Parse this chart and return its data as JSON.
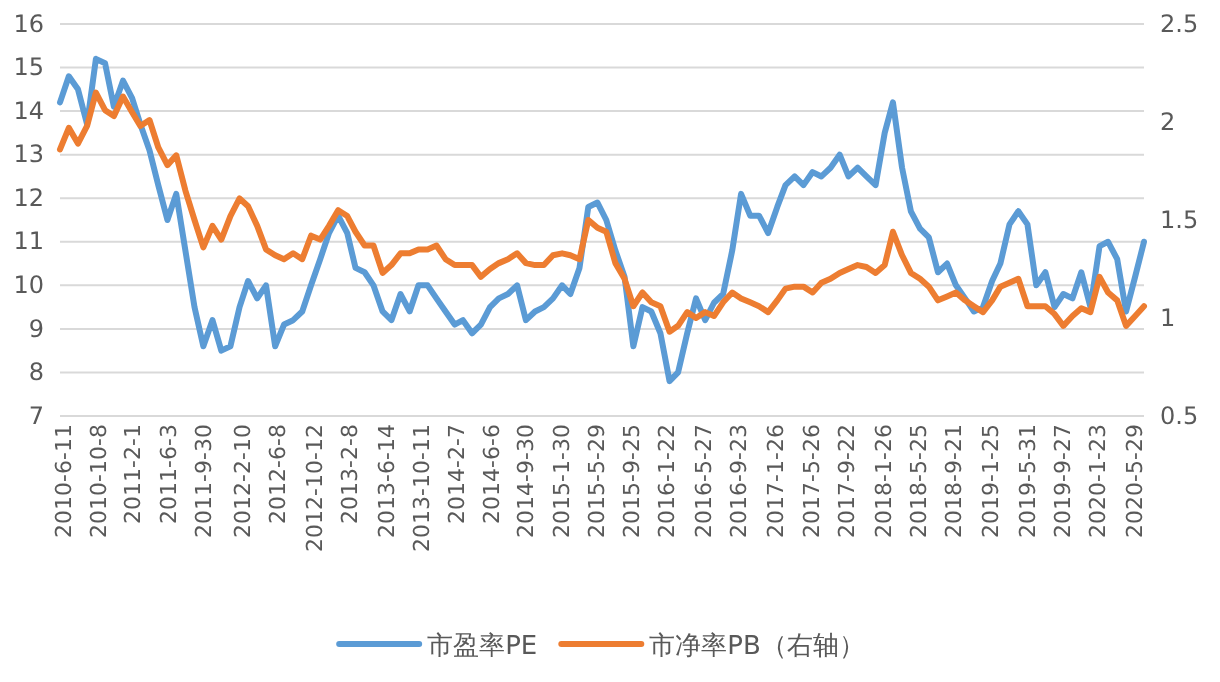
{
  "chart_data": {
    "type": "line",
    "x": [
      "2010-06",
      "2010-07",
      "2010-08",
      "2010-09",
      "2010-10",
      "2010-11",
      "2010-12",
      "2011-01",
      "2011-02",
      "2011-03",
      "2011-04",
      "2011-05",
      "2011-06",
      "2011-07",
      "2011-08",
      "2011-09",
      "2011-10",
      "2011-11",
      "2011-12",
      "2012-01",
      "2012-02",
      "2012-03",
      "2012-04",
      "2012-05",
      "2012-06",
      "2012-07",
      "2012-08",
      "2012-09",
      "2012-10",
      "2012-11",
      "2012-12",
      "2013-01",
      "2013-02",
      "2013-03",
      "2013-04",
      "2013-05",
      "2013-06",
      "2013-07",
      "2013-08",
      "2013-09",
      "2013-10",
      "2013-11",
      "2013-12",
      "2014-01",
      "2014-02",
      "2014-03",
      "2014-04",
      "2014-05",
      "2014-06",
      "2014-07",
      "2014-08",
      "2014-09",
      "2014-10",
      "2014-11",
      "2014-12",
      "2015-01",
      "2015-02",
      "2015-03",
      "2015-04",
      "2015-05",
      "2015-06",
      "2015-07",
      "2015-08",
      "2015-09",
      "2015-10",
      "2015-11",
      "2015-12",
      "2016-01",
      "2016-02",
      "2016-03",
      "2016-04",
      "2016-05",
      "2016-06",
      "2016-07",
      "2016-08",
      "2016-09",
      "2016-10",
      "2016-11",
      "2016-12",
      "2017-01",
      "2017-02",
      "2017-03",
      "2017-04",
      "2017-05",
      "2017-06",
      "2017-07",
      "2017-08",
      "2017-09",
      "2017-10",
      "2017-11",
      "2017-12",
      "2018-01",
      "2018-02",
      "2018-03",
      "2018-04",
      "2018-05",
      "2018-06",
      "2018-07",
      "2018-08",
      "2018-09",
      "2018-10",
      "2018-11",
      "2018-12",
      "2019-01",
      "2019-02",
      "2019-03",
      "2019-04",
      "2019-05",
      "2019-06",
      "2019-07",
      "2019-08",
      "2019-09",
      "2019-10",
      "2019-11",
      "2019-12",
      "2020-01",
      "2020-02",
      "2020-03",
      "2020-04",
      "2020-05",
      "2020-06",
      "2020-07"
    ],
    "series": [
      {
        "name": "市盈率PE",
        "color": "#5b9bd5",
        "values": [
          14.2,
          14.8,
          14.5,
          13.7,
          15.2,
          15.1,
          14.1,
          14.7,
          14.3,
          13.7,
          13.1,
          12.3,
          11.5,
          12.1,
          10.8,
          9.5,
          8.6,
          9.2,
          8.5,
          8.6,
          9.5,
          10.1,
          9.7,
          10.0,
          8.6,
          9.1,
          9.2,
          9.4,
          10.0,
          10.6,
          11.2,
          11.6,
          11.2,
          10.4,
          10.3,
          10.0,
          9.4,
          9.2,
          9.8,
          9.4,
          10.0,
          10.0,
          9.7,
          9.4,
          9.1,
          9.2,
          8.9,
          9.1,
          9.5,
          9.7,
          9.8,
          10.0,
          9.2,
          9.4,
          9.5,
          9.7,
          10.0,
          9.8,
          10.4,
          11.8,
          11.9,
          11.5,
          10.8,
          10.2,
          8.6,
          9.5,
          9.4,
          8.9,
          7.8,
          8.0,
          8.9,
          9.7,
          9.2,
          9.6,
          9.8,
          10.8,
          12.1,
          11.6,
          11.6,
          11.2,
          11.8,
          12.3,
          12.5,
          12.3,
          12.6,
          12.5,
          12.7,
          13.0,
          12.5,
          12.7,
          12.5,
          12.3,
          13.5,
          14.2,
          12.7,
          11.7,
          11.3,
          11.1,
          10.3,
          10.5,
          10.0,
          9.7,
          9.4,
          9.5,
          10.1,
          10.5,
          11.4,
          11.7,
          11.4,
          10.0,
          10.3,
          9.5,
          9.8,
          9.7,
          10.3,
          9.5,
          10.9,
          11.0,
          10.6,
          9.4,
          10.2,
          11.0
        ]
      },
      {
        "name": "市净率PB（右轴）",
        "color": "#ed7d31",
        "axis": "y2",
        "values": [
          1.86,
          1.97,
          1.89,
          1.98,
          2.15,
          2.06,
          2.03,
          2.13,
          2.05,
          1.98,
          2.01,
          1.87,
          1.78,
          1.83,
          1.65,
          1.5,
          1.36,
          1.47,
          1.4,
          1.52,
          1.61,
          1.57,
          1.47,
          1.35,
          1.32,
          1.3,
          1.33,
          1.3,
          1.42,
          1.4,
          1.47,
          1.55,
          1.52,
          1.44,
          1.37,
          1.37,
          1.23,
          1.27,
          1.33,
          1.33,
          1.35,
          1.35,
          1.37,
          1.3,
          1.27,
          1.27,
          1.27,
          1.21,
          1.25,
          1.28,
          1.3,
          1.33,
          1.28,
          1.27,
          1.27,
          1.32,
          1.33,
          1.32,
          1.3,
          1.5,
          1.46,
          1.44,
          1.28,
          1.2,
          1.06,
          1.13,
          1.08,
          1.06,
          0.93,
          0.96,
          1.03,
          1.0,
          1.03,
          1.01,
          1.08,
          1.13,
          1.1,
          1.08,
          1.06,
          1.03,
          1.09,
          1.15,
          1.16,
          1.16,
          1.13,
          1.18,
          1.2,
          1.23,
          1.25,
          1.27,
          1.26,
          1.23,
          1.27,
          1.44,
          1.32,
          1.23,
          1.2,
          1.16,
          1.09,
          1.11,
          1.13,
          1.09,
          1.06,
          1.03,
          1.09,
          1.16,
          1.18,
          1.2,
          1.06,
          1.06,
          1.06,
          1.02,
          0.96,
          1.01,
          1.05,
          1.03,
          1.21,
          1.13,
          1.09,
          0.96,
          1.01,
          1.06
        ]
      }
    ],
    "xlim": [
      "2010-06",
      "2020-07"
    ],
    "xticks": [
      {
        "value": "2010-06-11",
        "label": "2010-6-11"
      },
      {
        "value": "2010-10-08",
        "label": "2010-10-8"
      },
      {
        "value": "2011-02-01",
        "label": "2011-2-1"
      },
      {
        "value": "2011-06-03",
        "label": "2011-6-3"
      },
      {
        "value": "2011-09-30",
        "label": "2011-9-30"
      },
      {
        "value": "2012-02-10",
        "label": "2012-2-10"
      },
      {
        "value": "2012-06-08",
        "label": "2012-6-8"
      },
      {
        "value": "2012-10-12",
        "label": "2012-10-12"
      },
      {
        "value": "2013-02-08",
        "label": "2013-2-8"
      },
      {
        "value": "2013-06-14",
        "label": "2013-6-14"
      },
      {
        "value": "2013-10-11",
        "label": "2013-10-11"
      },
      {
        "value": "2014-02-07",
        "label": "2014-2-7"
      },
      {
        "value": "2014-06-06",
        "label": "2014-6-6"
      },
      {
        "value": "2014-09-30",
        "label": "2014-9-30"
      },
      {
        "value": "2015-01-30",
        "label": "2015-1-30"
      },
      {
        "value": "2015-05-29",
        "label": "2015-5-29"
      },
      {
        "value": "2015-09-25",
        "label": "2015-9-25"
      },
      {
        "value": "2016-01-22",
        "label": "2016-1-22"
      },
      {
        "value": "2016-05-27",
        "label": "2016-5-27"
      },
      {
        "value": "2016-09-23",
        "label": "2016-9-23"
      },
      {
        "value": "2017-01-26",
        "label": "2017-1-26"
      },
      {
        "value": "2017-05-26",
        "label": "2017-5-26"
      },
      {
        "value": "2017-09-22",
        "label": "2017-9-22"
      },
      {
        "value": "2018-01-26",
        "label": "2018-1-26"
      },
      {
        "value": "2018-05-25",
        "label": "2018-5-25"
      },
      {
        "value": "2018-09-21",
        "label": "2018-9-21"
      },
      {
        "value": "2019-01-25",
        "label": "2019-1-25"
      },
      {
        "value": "2019-05-31",
        "label": "2019-5-31"
      },
      {
        "value": "2019-09-27",
        "label": "2019-9-27"
      },
      {
        "value": "2020-01-23",
        "label": "2020-1-23"
      },
      {
        "value": "2020-05-29",
        "label": "2020-5-29"
      }
    ],
    "ylim": [
      7,
      16
    ],
    "yticks": [
      7,
      8,
      9,
      10,
      11,
      12,
      13,
      14,
      15,
      16
    ],
    "y2lim": [
      0.5,
      2.5
    ],
    "y2ticks": [
      0.5,
      1,
      1.5,
      2,
      2.5
    ],
    "grid": "y",
    "legend": "bottom",
    "marker": "none",
    "line_style": "solid"
  }
}
